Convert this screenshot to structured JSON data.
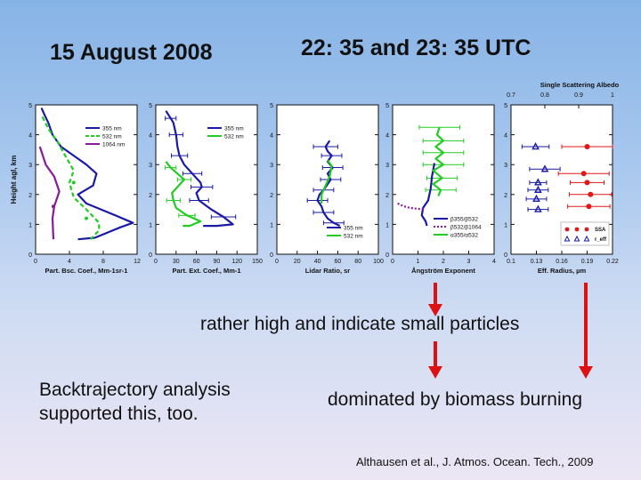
{
  "header": {
    "date": "15 August 2008",
    "time": "22: 35 and 23: 35 UTC"
  },
  "notes": {
    "particles": "rather high and indicate small particles",
    "backtrajectory_line1": "Backtrajectory analysis",
    "backtrajectory_line2": "supported this, too.",
    "biomass": "dominated by biomass burning"
  },
  "citation": "Althausen et al., J. Atmos. Ocean. Tech., 2009",
  "colors": {
    "blue": "#1a1aa6",
    "green": "#22cc22",
    "purple": "#8a1a9a",
    "red": "#e01818",
    "arrow": "#dd1111"
  },
  "chart_data": [
    {
      "type": "line",
      "id": "backscatter",
      "xlabel": "Part. Bsc. Coef., Mm-1sr-1",
      "ylabel": "Height agl, km",
      "xlim": [
        0,
        12
      ],
      "ylim": [
        0,
        5
      ],
      "xticks": [
        "0",
        "4",
        "8",
        "12"
      ],
      "yticks": [
        "0",
        "1",
        "2",
        "3",
        "4",
        "5"
      ],
      "legend": [
        "355 nm",
        "532 nm",
        "1064 nm"
      ],
      "series": [
        {
          "name": "355 nm",
          "color": "blue",
          "style": "solid",
          "points": [
            [
              0.7,
              4.9
            ],
            [
              1.0,
              4.7
            ],
            [
              1.5,
              4.4
            ],
            [
              2.0,
              4.0
            ],
            [
              3.0,
              3.6
            ],
            [
              4.5,
              3.3
            ],
            [
              6.0,
              3.0
            ],
            [
              7.2,
              2.7
            ],
            [
              6.8,
              2.3
            ],
            [
              5.0,
              2.0
            ],
            [
              6.0,
              1.7
            ],
            [
              9.0,
              1.35
            ],
            [
              11.5,
              1.05
            ],
            [
              10.0,
              0.9
            ],
            [
              7.0,
              0.55
            ],
            [
              5.0,
              0.5
            ]
          ]
        },
        {
          "name": "532 nm",
          "color": "green",
          "style": "dashed",
          "points": [
            [
              0.8,
              4.6
            ],
            [
              1.5,
              4.2
            ],
            [
              2.5,
              3.8
            ],
            [
              3.5,
              3.3
            ],
            [
              4.5,
              2.8
            ],
            [
              4.0,
              2.4
            ],
            [
              4.5,
              1.9
            ],
            [
              6.0,
              1.5
            ],
            [
              7.5,
              1.05
            ],
            [
              7.5,
              0.8
            ],
            [
              6.5,
              0.5
            ]
          ]
        },
        {
          "name": "1064 nm",
          "color": "purple",
          "style": "solid",
          "points": [
            [
              0.5,
              3.6
            ],
            [
              1.2,
              3.0
            ],
            [
              2.2,
              2.6
            ],
            [
              2.8,
              2.1
            ],
            [
              2.2,
              1.6
            ],
            [
              2.0,
              1.2
            ],
            [
              2.1,
              0.5
            ]
          ]
        }
      ],
      "markers": [
        {
          "color": "purple",
          "points": [
            [
              2.1,
              1.6
            ]
          ]
        },
        {
          "color": "green",
          "points": [
            [
              4.5,
              2.4
            ],
            [
              6.0,
              1.2
            ]
          ]
        }
      ]
    },
    {
      "type": "line",
      "id": "extinction",
      "xlabel": "Part. Ext. Coef., Mm-1",
      "xlim": [
        0,
        150
      ],
      "ylim": [
        0,
        5
      ],
      "xticks": [
        "0",
        "30",
        "60",
        "90",
        "120",
        "150"
      ],
      "yticks": [
        "0",
        "1",
        "2",
        "3",
        "4",
        "5"
      ],
      "legend": [
        "355 nm",
        "532 nm"
      ],
      "series": [
        {
          "name": "355 nm",
          "color": "blue",
          "style": "solid",
          "points": [
            [
              15,
              4.8
            ],
            [
              22,
              4.55
            ],
            [
              26,
              4.4
            ],
            [
              30,
              4.0
            ],
            [
              32,
              3.6
            ],
            [
              35,
              3.3
            ],
            [
              42,
              3.0
            ],
            [
              54,
              2.7
            ],
            [
              66,
              2.4
            ],
            [
              68,
              2.25
            ],
            [
              60,
              2.05
            ],
            [
              64,
              1.8
            ],
            [
              82,
              1.5
            ],
            [
              100,
              1.25
            ],
            [
              114,
              1.0
            ],
            [
              90,
              0.95
            ],
            [
              70,
              0.95
            ]
          ]
        },
        {
          "name": "532 nm",
          "color": "green",
          "style": "solid",
          "points": [
            [
              15,
              3.1
            ],
            [
              22,
              2.9
            ],
            [
              32,
              2.7
            ],
            [
              42,
              2.5
            ],
            [
              32,
              2.25
            ],
            [
              24,
              2.05
            ],
            [
              26,
              1.8
            ],
            [
              30,
              1.55
            ],
            [
              46,
              1.3
            ],
            [
              66,
              1.1
            ],
            [
              50,
              0.95
            ],
            [
              40,
              0.95
            ]
          ]
        }
      ],
      "errorbars": [
        {
          "color": "blue",
          "points": [
            [
              22,
              4.55,
              8
            ],
            [
              30,
              4.0,
              10
            ],
            [
              35,
              3.3,
              12
            ],
            [
              54,
              2.7,
              14
            ],
            [
              68,
              2.25,
              16
            ],
            [
              64,
              1.8,
              14
            ],
            [
              100,
              1.25,
              18
            ]
          ]
        },
        {
          "color": "green",
          "points": [
            [
              22,
              2.9,
              8
            ],
            [
              42,
              2.5,
              10
            ],
            [
              26,
              1.8,
              10
            ],
            [
              46,
              1.3,
              12
            ]
          ]
        }
      ]
    },
    {
      "type": "line",
      "id": "lidar-ratio",
      "xlabel": "Lidar Ratio, sr",
      "xlim": [
        0,
        100
      ],
      "ylim": [
        0,
        5
      ],
      "xticks": [
        "0",
        "20",
        "40",
        "60",
        "80",
        "100"
      ],
      "yticks": [
        "0",
        "1",
        "2",
        "3",
        "4",
        "5"
      ],
      "legend": [
        "355 nm",
        "532 nm"
      ],
      "series": [
        {
          "name": "355 nm",
          "color": "blue",
          "style": "solid",
          "points": [
            [
              52,
              3.8
            ],
            [
              48,
              3.6
            ],
            [
              50,
              3.45
            ],
            [
              54,
              3.3
            ],
            [
              50,
              3.1
            ],
            [
              55,
              2.9
            ],
            [
              50,
              2.7
            ],
            [
              53,
              2.5
            ],
            [
              49,
              2.3
            ],
            [
              46,
              2.15
            ],
            [
              42,
              2.0
            ],
            [
              40,
              1.8
            ],
            [
              44,
              1.6
            ],
            [
              46,
              1.4
            ],
            [
              50,
              1.2
            ],
            [
              56,
              1.05
            ],
            [
              62,
              0.95
            ]
          ]
        },
        {
          "name": "532 nm",
          "color": "green",
          "style": "solid",
          "points": [
            [
              50,
              3.15
            ],
            [
              54,
              2.95
            ],
            [
              52,
              2.6
            ],
            [
              48,
              2.3
            ],
            [
              44,
              2.0
            ],
            [
              44,
              1.7
            ]
          ]
        }
      ],
      "errorbars": [
        {
          "color": "blue",
          "points": [
            [
              48,
              3.6,
              12
            ],
            [
              54,
              3.3,
              10
            ],
            [
              55,
              2.9,
              10
            ],
            [
              53,
              2.5,
              10
            ],
            [
              46,
              2.15,
              10
            ],
            [
              40,
              1.8,
              10
            ],
            [
              46,
              1.4,
              10
            ],
            [
              56,
              1.05,
              10
            ]
          ]
        }
      ]
    },
    {
      "type": "line",
      "id": "angstrom",
      "xlabel": "Ångström Exponent",
      "xlim": [
        0,
        4
      ],
      "ylim": [
        0,
        5
      ],
      "xticks": [
        "0",
        "1",
        "2",
        "3",
        "4"
      ],
      "yticks": [
        "0",
        "1",
        "2",
        "3",
        "4",
        "5"
      ],
      "legend": [
        "β355/β532",
        "β532/β1064",
        "α355/α532"
      ],
      "series": [
        {
          "name": "β355/β532",
          "color": "blue",
          "style": "solid",
          "points": [
            [
              1.65,
              3.05
            ],
            [
              1.55,
              2.6
            ],
            [
              1.5,
              2.2
            ],
            [
              1.4,
              1.8
            ],
            [
              1.2,
              1.55
            ],
            [
              1.15,
              1.3
            ],
            [
              1.3,
              1.1
            ],
            [
              1.35,
              0.95
            ]
          ]
        },
        {
          "name": "β532/β1064",
          "color": "purple",
          "style": "dotted",
          "points": [
            [
              0.2,
              1.7
            ],
            [
              0.45,
              1.6
            ],
            [
              0.7,
              1.55
            ],
            [
              1.0,
              1.52
            ],
            [
              1.25,
              1.5
            ]
          ]
        },
        {
          "name": "α355/α532",
          "color": "green",
          "style": "solid",
          "points": [
            [
              1.85,
              4.25
            ],
            [
              1.75,
              4.0
            ],
            [
              2.0,
              3.8
            ],
            [
              1.7,
              3.6
            ],
            [
              2.0,
              3.4
            ],
            [
              1.7,
              3.2
            ],
            [
              2.0,
              3.0
            ],
            [
              1.6,
              2.8
            ],
            [
              1.95,
              2.55
            ],
            [
              1.6,
              2.35
            ],
            [
              1.9,
              2.15
            ],
            [
              1.8,
              1.95
            ]
          ]
        }
      ],
      "errorbars": [
        {
          "color": "green",
          "points": [
            [
              1.85,
              4.25,
              0.8
            ],
            [
              2.0,
              3.8,
              0.8
            ],
            [
              2.0,
              3.4,
              0.8
            ],
            [
              2.0,
              3.0,
              0.8
            ],
            [
              1.95,
              2.55,
              0.6
            ],
            [
              1.9,
              2.15,
              0.6
            ]
          ]
        }
      ]
    },
    {
      "type": "scatter",
      "id": "eff-radius",
      "title": "Single Scattering Albedo",
      "xlabel": "Eff. Radius, µm",
      "xlim": [
        0.1,
        0.22
      ],
      "ylim": [
        0,
        5
      ],
      "xticks": [
        "0.1",
        "0.13",
        "0.16",
        "0.19",
        "0.22"
      ],
      "yticks": [
        "0",
        "1",
        "2",
        "3",
        "4",
        "5"
      ],
      "top_axis_ticks": [
        "0.7",
        "0.8",
        "0.9",
        "1"
      ],
      "legend": [
        "SSA",
        "r_eff"
      ],
      "series": [
        {
          "name": "SSA",
          "color": "red",
          "marker": "circle",
          "points": [
            [
              0.19,
              3.6
            ],
            [
              0.186,
              2.7
            ],
            [
              0.19,
              2.4
            ],
            [
              0.194,
              2.0
            ],
            [
              0.192,
              1.6
            ]
          ]
        },
        {
          "name": "r_eff",
          "color": "blue",
          "marker": "triangle",
          "points": [
            [
              0.129,
              3.6
            ],
            [
              0.14,
              2.85
            ],
            [
              0.132,
              2.4
            ],
            [
              0.132,
              2.15
            ],
            [
              0.13,
              1.85
            ],
            [
              0.132,
              1.5
            ]
          ]
        }
      ],
      "errorbars": [
        {
          "color": "red",
          "points": [
            [
              0.19,
              3.6,
              0.03
            ],
            [
              0.186,
              2.7,
              0.03
            ],
            [
              0.19,
              2.4,
              0.02
            ],
            [
              0.194,
              2.0,
              0.025
            ],
            [
              0.192,
              1.6,
              0.025
            ]
          ]
        },
        {
          "color": "blue",
          "points": [
            [
              0.129,
              3.6,
              0.016
            ],
            [
              0.14,
              2.85,
              0.018
            ],
            [
              0.132,
              2.4,
              0.01
            ],
            [
              0.132,
              2.15,
              0.012
            ],
            [
              0.13,
              1.85,
              0.012
            ],
            [
              0.132,
              1.5,
              0.012
            ]
          ]
        }
      ]
    }
  ]
}
